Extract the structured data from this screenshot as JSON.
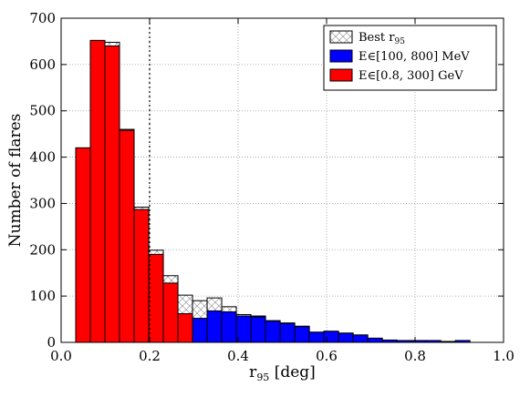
{
  "chart_data": {
    "type": "bar",
    "xlabel": "r₉₅ [deg]",
    "xlabel_main": "r",
    "xlabel_sub": "95",
    "xlabel_rest": " [deg]",
    "ylabel": "Number of flares",
    "xlim": [
      0.0,
      1.0
    ],
    "ylim": [
      0,
      700
    ],
    "xticks": [
      "0.0",
      "0.2",
      "0.4",
      "0.6",
      "0.8",
      "1.0"
    ],
    "yticks": [
      "0",
      "100",
      "200",
      "300",
      "400",
      "500",
      "600",
      "700"
    ],
    "grid": true,
    "vline_x": 0.2,
    "legend_position": "top-right",
    "bin_edges": [
      0.033,
      0.066,
      0.099,
      0.132,
      0.165,
      0.198,
      0.231,
      0.264,
      0.297,
      0.33,
      0.363,
      0.396,
      0.429,
      0.462,
      0.495,
      0.528,
      0.561,
      0.594,
      0.627,
      0.66,
      0.693,
      0.726,
      0.759,
      0.792,
      0.825,
      0.858,
      0.891,
      0.924,
      0.957
    ],
    "series": [
      {
        "name": "Best r₉₅",
        "legend_main": "Best r",
        "legend_sub": "95",
        "color": "#ffffff",
        "pattern": "crosshatch",
        "values": [
          420,
          652,
          648,
          460,
          292,
          199,
          144,
          102,
          90,
          96,
          77,
          60,
          57,
          47,
          42,
          35,
          22,
          24,
          20,
          16,
          9,
          5,
          4,
          4,
          4,
          2,
          4,
          0
        ]
      },
      {
        "name": "E∈[100, 800] MeV",
        "legend_label": "E∈[100, 800] MeV",
        "color": "#0000ff",
        "values": [
          0,
          0,
          9,
          4,
          5,
          9,
          16,
          38,
          52,
          68,
          66,
          57,
          55,
          46,
          41,
          34,
          22,
          24,
          20,
          16,
          9,
          5,
          4,
          4,
          4,
          2,
          4,
          0
        ]
      },
      {
        "name": "E∈[0.8, 300] GeV",
        "legend_label": "E∈[0.8, 300] GeV",
        "color": "#ff0000",
        "values": [
          420,
          652,
          640,
          458,
          287,
          190,
          128,
          62,
          0,
          0,
          0,
          0,
          0,
          0,
          0,
          0,
          0,
          0,
          0,
          0,
          0,
          0,
          0,
          0,
          0,
          0,
          0,
          0
        ]
      }
    ]
  }
}
